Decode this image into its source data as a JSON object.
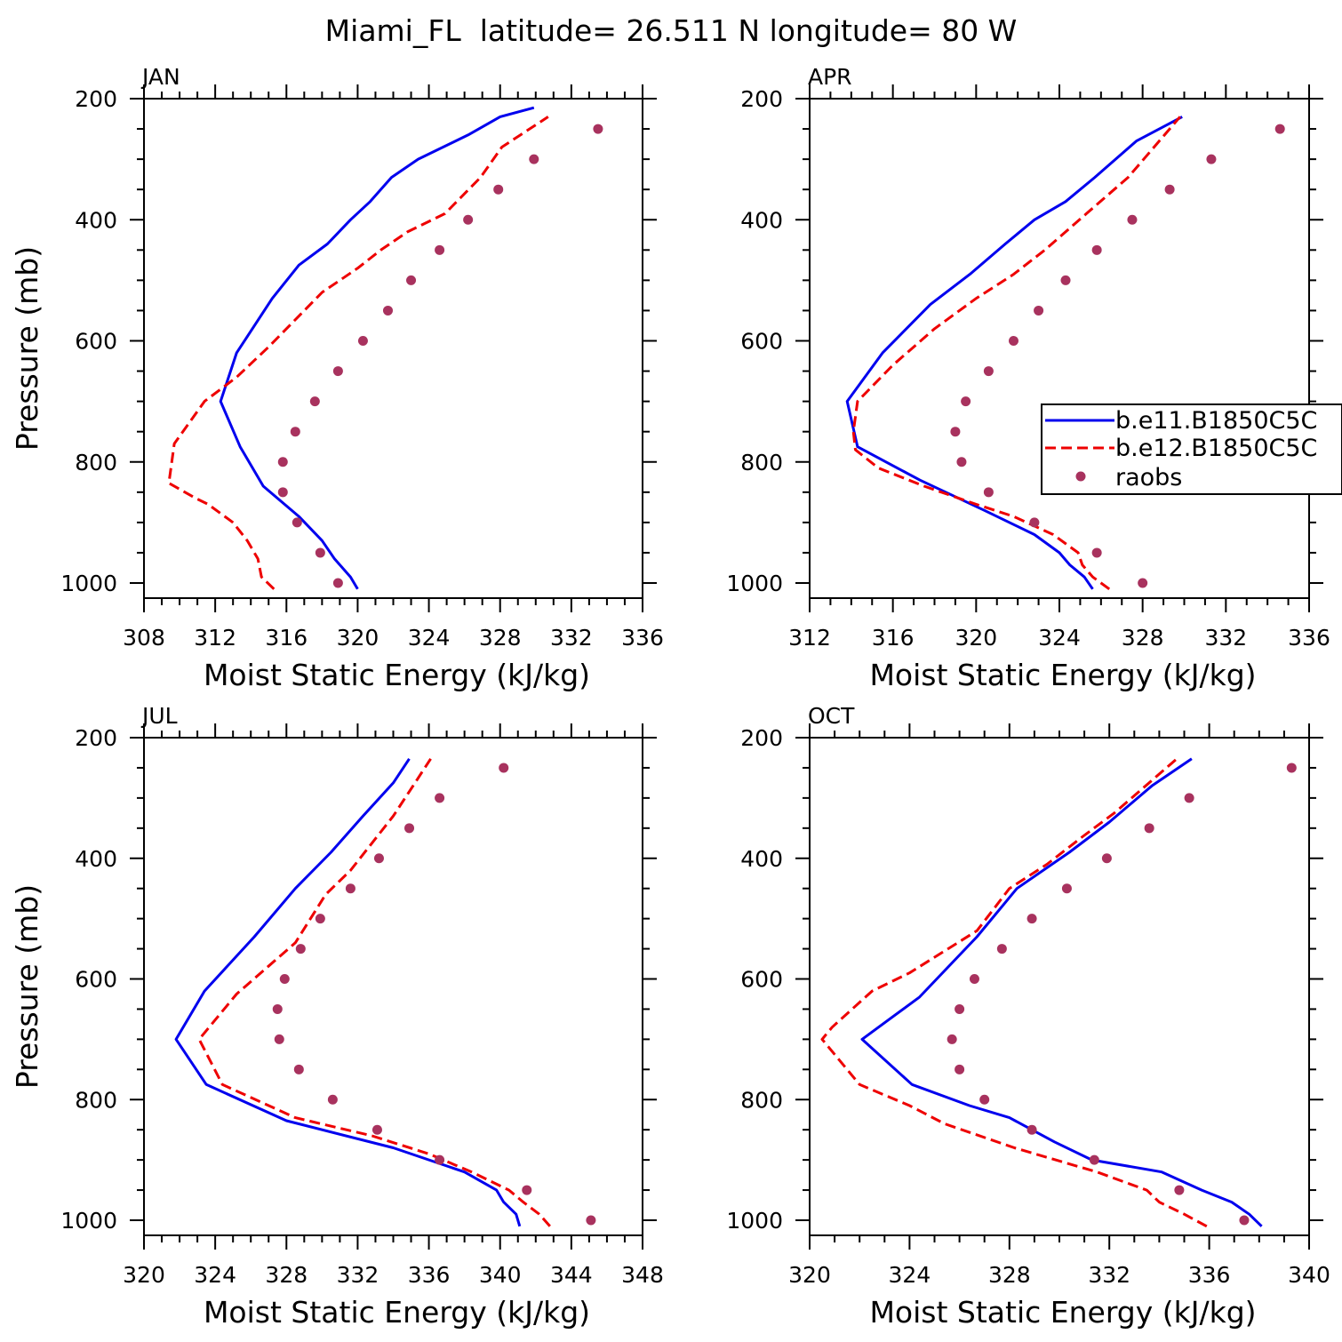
{
  "title": "Miami_FL  latitude= 26.511 N longitude= 80 W",
  "colors": {
    "model1": "#0000ee",
    "model2": "#ee0000",
    "obs": "#a8325e"
  },
  "legend": [
    "b.e11.B1850C5C",
    "b.e12.B1850C5C",
    "raobs"
  ],
  "chart_data": [
    {
      "type": "line",
      "panel": "JAN",
      "xlabel": "Moist Static Energy (kJ/kg)",
      "ylabel": "Pressure (mb)",
      "xlim": [
        308,
        336
      ],
      "ylim": [
        1000,
        200
      ],
      "xticks": [
        308,
        312,
        316,
        320,
        324,
        328,
        332,
        336
      ],
      "yticks": [
        200,
        400,
        600,
        800,
        1000
      ],
      "series": [
        {
          "name": "b.e11.B1850C5C",
          "style": "solid",
          "x": [
            320.0,
            319.6,
            318.7,
            318.0,
            316.7,
            314.7,
            313.4,
            312.3,
            313.2,
            315.2,
            316.7,
            318.3,
            319.6,
            320.7,
            321.9,
            323.4,
            326.2,
            328.0,
            329.9
          ],
          "y": [
            1010,
            990,
            960,
            930,
            890,
            840,
            775,
            700,
            620,
            530,
            475,
            440,
            400,
            370,
            330,
            300,
            260,
            230,
            215
          ]
        },
        {
          "name": "b.e12.B1850C5C",
          "style": "dashed",
          "x": [
            315.3,
            314.6,
            314.4,
            313.8,
            313.0,
            311.6,
            310.9,
            309.4,
            309.7,
            311.4,
            313.2,
            315.0,
            318.0,
            320.0,
            321.3,
            322.8,
            324.9,
            326.9,
            328.1,
            330.7
          ],
          "y": [
            1010,
            990,
            960,
            930,
            900,
            870,
            860,
            835,
            770,
            700,
            660,
            610,
            520,
            480,
            450,
            420,
            390,
            330,
            280,
            230
          ]
        },
        {
          "name": "raobs",
          "style": "dots",
          "x": [
            318.9,
            317.9,
            316.6,
            315.8,
            315.8,
            316.5,
            317.6,
            318.9,
            320.3,
            321.7,
            323.0,
            324.6,
            326.2,
            327.9,
            329.9,
            333.5
          ],
          "y": [
            1000,
            950,
            900,
            850,
            800,
            750,
            700,
            650,
            600,
            550,
            500,
            450,
            400,
            350,
            300,
            250
          ]
        }
      ]
    },
    {
      "type": "line",
      "panel": "APR",
      "xlabel": "Moist Static Energy (kJ/kg)",
      "ylabel": "",
      "xlim": [
        312,
        336
      ],
      "ylim": [
        1000,
        200
      ],
      "xticks": [
        312,
        316,
        320,
        324,
        328,
        332,
        336
      ],
      "yticks": [
        200,
        400,
        600,
        800,
        1000
      ],
      "series": [
        {
          "name": "b.e11.B1850C5C",
          "style": "solid",
          "x": [
            325.6,
            325.2,
            324.5,
            324.0,
            322.8,
            320.4,
            317.3,
            314.3,
            313.8,
            315.5,
            317.8,
            319.7,
            321.4,
            322.8,
            324.3,
            325.7,
            327.7,
            329.9
          ],
          "y": [
            1010,
            990,
            970,
            950,
            920,
            880,
            830,
            775,
            700,
            620,
            540,
            490,
            440,
            400,
            370,
            330,
            270,
            230
          ]
        },
        {
          "name": "b.e12.B1850C5C",
          "style": "dashed",
          "x": [
            326.4,
            325.6,
            325.1,
            324.9,
            323.7,
            321.8,
            320.0,
            317.5,
            315.3,
            314.2,
            314.1,
            314.3,
            316.0,
            318.0,
            320.0,
            321.8,
            323.3,
            325.3,
            327.3,
            329.8
          ],
          "y": [
            1010,
            990,
            970,
            950,
            920,
            890,
            870,
            840,
            810,
            780,
            750,
            700,
            640,
            580,
            530,
            490,
            450,
            390,
            330,
            230
          ]
        },
        {
          "name": "raobs",
          "style": "dots",
          "x": [
            328.0,
            325.8,
            322.8,
            320.6,
            319.3,
            319.0,
            319.5,
            320.6,
            321.8,
            323.0,
            324.3,
            325.8,
            327.5,
            329.3,
            331.3,
            334.6
          ],
          "y": [
            1000,
            950,
            900,
            850,
            800,
            750,
            700,
            650,
            600,
            550,
            500,
            450,
            400,
            350,
            300,
            250
          ]
        }
      ]
    },
    {
      "type": "line",
      "panel": "JUL",
      "xlabel": "Moist Static Energy (kJ/kg)",
      "ylabel": "Pressure (mb)",
      "xlim": [
        320,
        348
      ],
      "ylim": [
        1000,
        200
      ],
      "xticks": [
        320,
        324,
        328,
        332,
        336,
        340,
        344,
        348
      ],
      "yticks": [
        200,
        400,
        600,
        800,
        1000
      ],
      "series": [
        {
          "name": "b.e11.B1850C5C",
          "style": "solid",
          "x": [
            341.1,
            340.9,
            340.2,
            339.8,
            338.0,
            334.0,
            328.0,
            323.5,
            321.8,
            323.4,
            326.2,
            328.5,
            330.5,
            332.3,
            334.0,
            334.9
          ],
          "y": [
            1010,
            990,
            970,
            950,
            920,
            880,
            835,
            775,
            700,
            620,
            530,
            450,
            390,
            330,
            275,
            235
          ]
        },
        {
          "name": "b.e12.B1850C5C",
          "style": "dashed",
          "x": [
            342.8,
            342.2,
            341.3,
            340.5,
            338.4,
            336.0,
            332.8,
            328.5,
            324.4,
            323.1,
            325.2,
            328.5,
            330.2,
            331.6,
            334.0,
            335.0,
            336.1
          ],
          "y": [
            1010,
            990,
            970,
            950,
            920,
            890,
            860,
            830,
            775,
            700,
            625,
            540,
            460,
            420,
            330,
            285,
            235
          ]
        },
        {
          "name": "raobs",
          "style": "dots",
          "x": [
            345.1,
            341.5,
            336.6,
            333.1,
            330.6,
            328.7,
            327.6,
            327.5,
            327.9,
            328.8,
            329.9,
            331.6,
            333.2,
            334.9,
            336.6,
            340.2
          ],
          "y": [
            1000,
            950,
            900,
            850,
            800,
            750,
            700,
            650,
            600,
            550,
            500,
            450,
            400,
            350,
            300,
            250
          ]
        }
      ]
    },
    {
      "type": "line",
      "panel": "OCT",
      "xlabel": "Moist Static Energy (kJ/kg)",
      "ylabel": "",
      "xlim": [
        320,
        340
      ],
      "ylim": [
        1000,
        200
      ],
      "xticks": [
        320,
        324,
        328,
        332,
        336,
        340
      ],
      "yticks": [
        200,
        400,
        600,
        800,
        1000
      ],
      "series": [
        {
          "name": "b.e11.B1850C5C",
          "style": "solid",
          "x": [
            338.1,
            337.6,
            336.9,
            335.7,
            334.1,
            331.3,
            329.8,
            328.0,
            326.4,
            324.1,
            322.1,
            324.4,
            326.7,
            328.3,
            330.4,
            332.0,
            333.7,
            335.3
          ],
          "y": [
            1010,
            990,
            970,
            950,
            920,
            900,
            870,
            830,
            810,
            775,
            700,
            630,
            530,
            450,
            390,
            340,
            280,
            235
          ]
        },
        {
          "name": "b.e12.B1850C5C",
          "style": "dashed",
          "x": [
            335.9,
            335.0,
            334.0,
            333.5,
            331.5,
            328.2,
            325.4,
            324.0,
            322.0,
            320.5,
            320.9,
            322.5,
            324.0,
            326.7,
            328.0,
            329.5,
            330.9,
            332.2,
            334.7
          ],
          "y": [
            1010,
            990,
            970,
            950,
            920,
            880,
            840,
            810,
            775,
            700,
            680,
            620,
            590,
            520,
            450,
            410,
            365,
            325,
            235
          ]
        },
        {
          "name": "raobs",
          "style": "dots",
          "x": [
            337.4,
            334.8,
            331.4,
            328.9,
            327.0,
            326.0,
            325.7,
            326.0,
            326.6,
            327.7,
            328.9,
            330.3,
            331.9,
            333.6,
            335.2,
            339.3
          ],
          "y": [
            1000,
            950,
            900,
            850,
            800,
            750,
            700,
            650,
            600,
            550,
            500,
            450,
            400,
            350,
            300,
            250
          ]
        }
      ]
    }
  ]
}
